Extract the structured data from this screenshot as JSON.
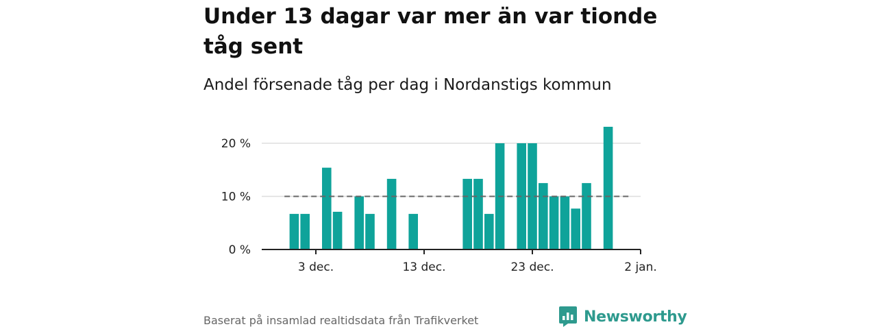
{
  "title": "Under 13 dagar var mer än var tionde tåg sent",
  "subtitle": "Andel försenade tåg per dag i Nordanstigs kommun",
  "source": "Baserat på insamlad realtidsdata från Trafikverket",
  "brand": {
    "name": "Newsworthy",
    "logo_icon": "newsworthy-logo-icon",
    "color": "#2e9a8e"
  },
  "colors": {
    "bar": "#0fa39a",
    "reference_line": "#666666",
    "grid": "#dddddd",
    "axis": "#222222"
  },
  "chart_data": {
    "type": "bar",
    "title": "Under 13 dagar var mer än var tionde tåg sent",
    "subtitle": "Andel försenade tåg per dag i Nordanstigs kommun",
    "x_unit": "date",
    "x_range": [
      "2023-11-28",
      "2024-01-02"
    ],
    "y_unit": "%",
    "ylim": [
      0,
      24
    ],
    "y_ticks": [
      {
        "value": 0,
        "label": "0 %"
      },
      {
        "value": 10,
        "label": "10 %"
      },
      {
        "value": 20,
        "label": "20 %"
      }
    ],
    "x_ticks": [
      {
        "date": "2023-12-03",
        "label": "3 dec."
      },
      {
        "date": "2023-12-13",
        "label": "13 dec."
      },
      {
        "date": "2023-12-23",
        "label": "23 dec."
      },
      {
        "date": "2024-01-02",
        "label": "2 jan."
      }
    ],
    "reference_line": {
      "value": 10,
      "style": "dashed",
      "from": "2023-12-01",
      "to": "2023-12-31"
    },
    "grid": true,
    "legend": false,
    "series": [
      {
        "values": [
          {
            "date": "2023-12-01",
            "value": 6.7
          },
          {
            "date": "2023-12-02",
            "value": 6.7
          },
          {
            "date": "2023-12-04",
            "value": 15.4
          },
          {
            "date": "2023-12-05",
            "value": 7.1
          },
          {
            "date": "2023-12-07",
            "value": 10.0
          },
          {
            "date": "2023-12-08",
            "value": 6.7
          },
          {
            "date": "2023-12-10",
            "value": 13.3
          },
          {
            "date": "2023-12-12",
            "value": 6.7
          },
          {
            "date": "2023-12-17",
            "value": 13.3
          },
          {
            "date": "2023-12-18",
            "value": 13.3
          },
          {
            "date": "2023-12-19",
            "value": 6.7
          },
          {
            "date": "2023-12-20",
            "value": 20.0
          },
          {
            "date": "2023-12-22",
            "value": 20.0
          },
          {
            "date": "2023-12-23",
            "value": 20.0
          },
          {
            "date": "2023-12-24",
            "value": 12.5
          },
          {
            "date": "2023-12-25",
            "value": 10.0
          },
          {
            "date": "2023-12-26",
            "value": 10.0
          },
          {
            "date": "2023-12-27",
            "value": 7.7
          },
          {
            "date": "2023-12-28",
            "value": 12.5
          },
          {
            "date": "2023-12-30",
            "value": 23.1
          }
        ]
      }
    ]
  }
}
